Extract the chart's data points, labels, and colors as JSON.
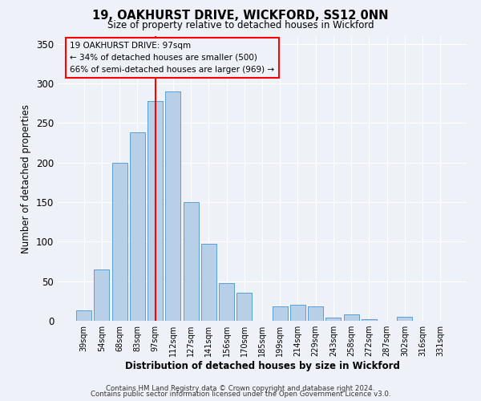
{
  "title": "19, OAKHURST DRIVE, WICKFORD, SS12 0NN",
  "subtitle": "Size of property relative to detached houses in Wickford",
  "xlabel": "Distribution of detached houses by size in Wickford",
  "ylabel": "Number of detached properties",
  "bar_labels": [
    "39sqm",
    "54sqm",
    "68sqm",
    "83sqm",
    "97sqm",
    "112sqm",
    "127sqm",
    "141sqm",
    "156sqm",
    "170sqm",
    "185sqm",
    "199sqm",
    "214sqm",
    "229sqm",
    "243sqm",
    "258sqm",
    "272sqm",
    "287sqm",
    "302sqm",
    "316sqm",
    "331sqm"
  ],
  "bar_values": [
    13,
    65,
    200,
    238,
    278,
    290,
    150,
    97,
    48,
    35,
    0,
    18,
    20,
    18,
    4,
    8,
    2,
    0,
    5,
    0,
    0
  ],
  "bar_color": "#b8cfe8",
  "bar_edge_color": "#5a9fd4",
  "vline_x_index": 4,
  "vline_color": "red",
  "ylim": [
    0,
    360
  ],
  "yticks": [
    0,
    50,
    100,
    150,
    200,
    250,
    300,
    350
  ],
  "annotation_title": "19 OAKHURST DRIVE: 97sqm",
  "annotation_line1": "← 34% of detached houses are smaller (500)",
  "annotation_line2": "66% of semi-detached houses are larger (969) →",
  "footnote1": "Contains HM Land Registry data © Crown copyright and database right 2024.",
  "footnote2": "Contains public sector information licensed under the Open Government Licence v3.0.",
  "background_color": "#eef2f8"
}
